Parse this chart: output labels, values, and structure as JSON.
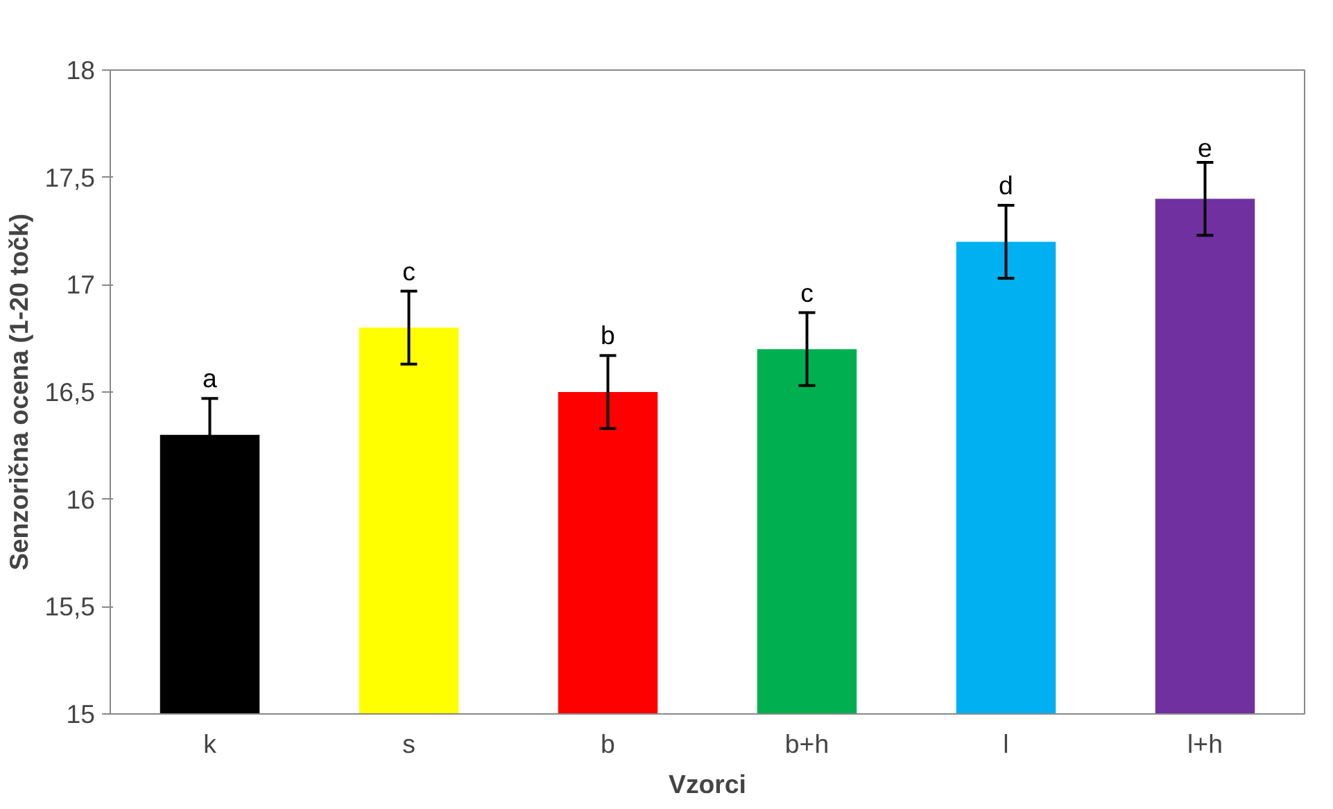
{
  "chart_data": {
    "type": "bar",
    "xlabel": "Vzorci",
    "ylabel": "Senzorična ocena (1-20 točk)",
    "categories": [
      "k",
      "s",
      "b",
      "b+h",
      "l",
      "l+h"
    ],
    "values": [
      16.3,
      16.8,
      16.5,
      16.7,
      17.2,
      17.4
    ],
    "colors": [
      "#000000",
      "#ffff00",
      "#ff0000",
      "#00b050",
      "#00b0f0",
      "#7030a0"
    ],
    "errors": [
      0.17,
      0.17,
      0.17,
      0.17,
      0.17,
      0.17
    ],
    "ylim": [
      15,
      18
    ],
    "yticks": [
      15,
      {
        "value": 15.5,
        "label": "15,5"
      },
      16,
      {
        "value": 16.5,
        "label": "16,5"
      },
      17,
      {
        "value": 17.5,
        "label": "17,5"
      },
      18
    ],
    "grid": false,
    "annotations": [
      "a",
      "c",
      "b",
      "c",
      "d",
      "e"
    ]
  }
}
